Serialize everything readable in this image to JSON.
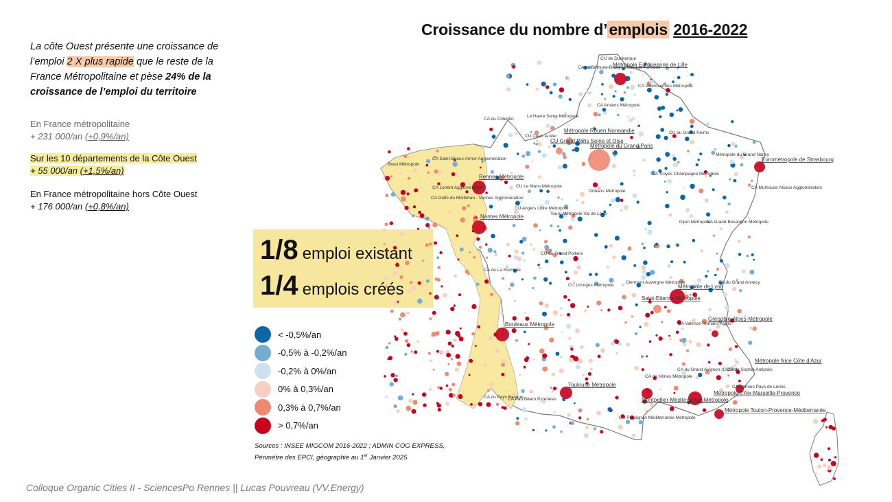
{
  "intro": {
    "part1": "La côte Ouest présente une croissance de l’emploi ",
    "highlight": "2 X plus rapide",
    "part2": " que le reste de la France Métropolitaine et pèse ",
    "bold": "24% de la croissance de l’emploi du territoire"
  },
  "stats": [
    {
      "label": "En France métropolitaine",
      "value": "+ 231 000/an ",
      "pct": "(+0,9%/an)"
    },
    {
      "label": "Sur les 10 départements de la Côte Ouest",
      "value": "+ 55 000/an ",
      "pct": "(+1,5%/an)"
    },
    {
      "label": "En France métropolitaine hors Côte Ouest",
      "value": "+ 176 000/an ",
      "pct": "(+0,8%/an)"
    }
  ],
  "title": {
    "part1": "Croissance du nombre d’",
    "emph": "emplois",
    "space": " ",
    "years": "2016-2022"
  },
  "ratios": [
    {
      "big": "1/8",
      "small": "emploi existant"
    },
    {
      "big": "1/4",
      "small": "emplois créés"
    }
  ],
  "legend": [
    {
      "label": "< -0,5%/an",
      "color": "#0b67a8"
    },
    {
      "label": "-0,5% à -0,2%/an",
      "color": "#74acd4"
    },
    {
      "label": "-0,2% à 0%/an",
      "color": "#cfe1ee"
    },
    {
      "label": "0% à 0,3%/an",
      "color": "#f6cfc2"
    },
    {
      "label": "0,3% à 0,7%/an",
      "color": "#ef8a72"
    },
    {
      "label": "> 0,7%/an",
      "color": "#c8001e"
    }
  ],
  "sources": {
    "line1": "Sources : INSEE MIGCOM 2016-2022 ; ADMIN COG EXPRESS,",
    "line2a": "Périmètre des EPCI, géographie au 1",
    "sup": "er",
    "line2b": " Janvier 2025"
  },
  "footer": "Colloque Organic Cities II - SciencesPo Rennes || Lucas Pouvreau (VV.Energy)",
  "map": {
    "region_highlight_color": "#f9e8a0",
    "major_cities": [
      {
        "name": "Métropole Européenne de Lille",
        "cls": 5
      },
      {
        "name": "Métropole du Grand Paris",
        "cls": 4
      },
      {
        "name": "Métropole Rouen Normandie",
        "cls": 4
      },
      {
        "name": "CU Grand Paris Seine et Oise",
        "cls": 4
      },
      {
        "name": "Eurométropole de Strasbourg",
        "cls": 5
      },
      {
        "name": "Rennes Métropole",
        "cls": 5
      },
      {
        "name": "Nantes Métropole",
        "cls": 5
      },
      {
        "name": "Bordeaux Métropole",
        "cls": 5
      },
      {
        "name": "Toulouse Métropole",
        "cls": 5
      },
      {
        "name": "Montpellier Méditerranée Métropole",
        "cls": 5
      },
      {
        "name": "Métropole d'Aix-Marseille-Provence",
        "cls": 5
      },
      {
        "name": "Métropole Toulon-Provence-Méditerranée",
        "cls": 5
      },
      {
        "name": "Métropole Nice Côte d'Azur",
        "cls": 5
      },
      {
        "name": "Métropole de Lyon",
        "cls": 5
      },
      {
        "name": "Saint-Etienne Métropole",
        "cls": 4
      },
      {
        "name": "Grenoble-Alpes-Métropole",
        "cls": 5
      }
    ],
    "minor_labels": [
      "CU de Dunkerque",
      "CA de Béthune-Bruay, Artois-Lys Romane",
      "CA Valenciennes Métropole",
      "CA Amiens Métropole",
      "CA du Cotentin",
      "Le Havre Seine Métropole",
      "CU Caen la Mer",
      "CU du Grand Reims",
      "Métropole du Grand Nancy",
      "CA Mulhouse Alsace Agglomération",
      "CA Troyes Champagne Métropole",
      "Orléans Métropole",
      "CU Le Mans Métropole",
      "CU Angers Loire Métropole",
      "Tours Métropole Val de Loire",
      "Dijon Métropole",
      "CA Grand Besançon Métropole",
      "CU du Grand Poitiers",
      "CU Limoges Métropole",
      "Clermont Auvergne Métropole",
      "CA du Grand Annecy",
      "CA Valence Romans Agglo",
      "CA de Nîmes Métropole",
      "CA du Grand Avignon (COGA)",
      "CA de Sophia Antipolis",
      "CA Cannes Pays de Lérins",
      "CU Perpignan Méditerranée Métropole",
      "CA du Pays Basque",
      "CA Pau Béarn Pyrénées",
      "Brest Métropole",
      "CA Saint-Brieuc Armor Agglomération",
      "CA Lorient Agglomération",
      "CA Golfe du Morbihan - Vannes Agglomération",
      "CA de La Rochelle"
    ]
  }
}
